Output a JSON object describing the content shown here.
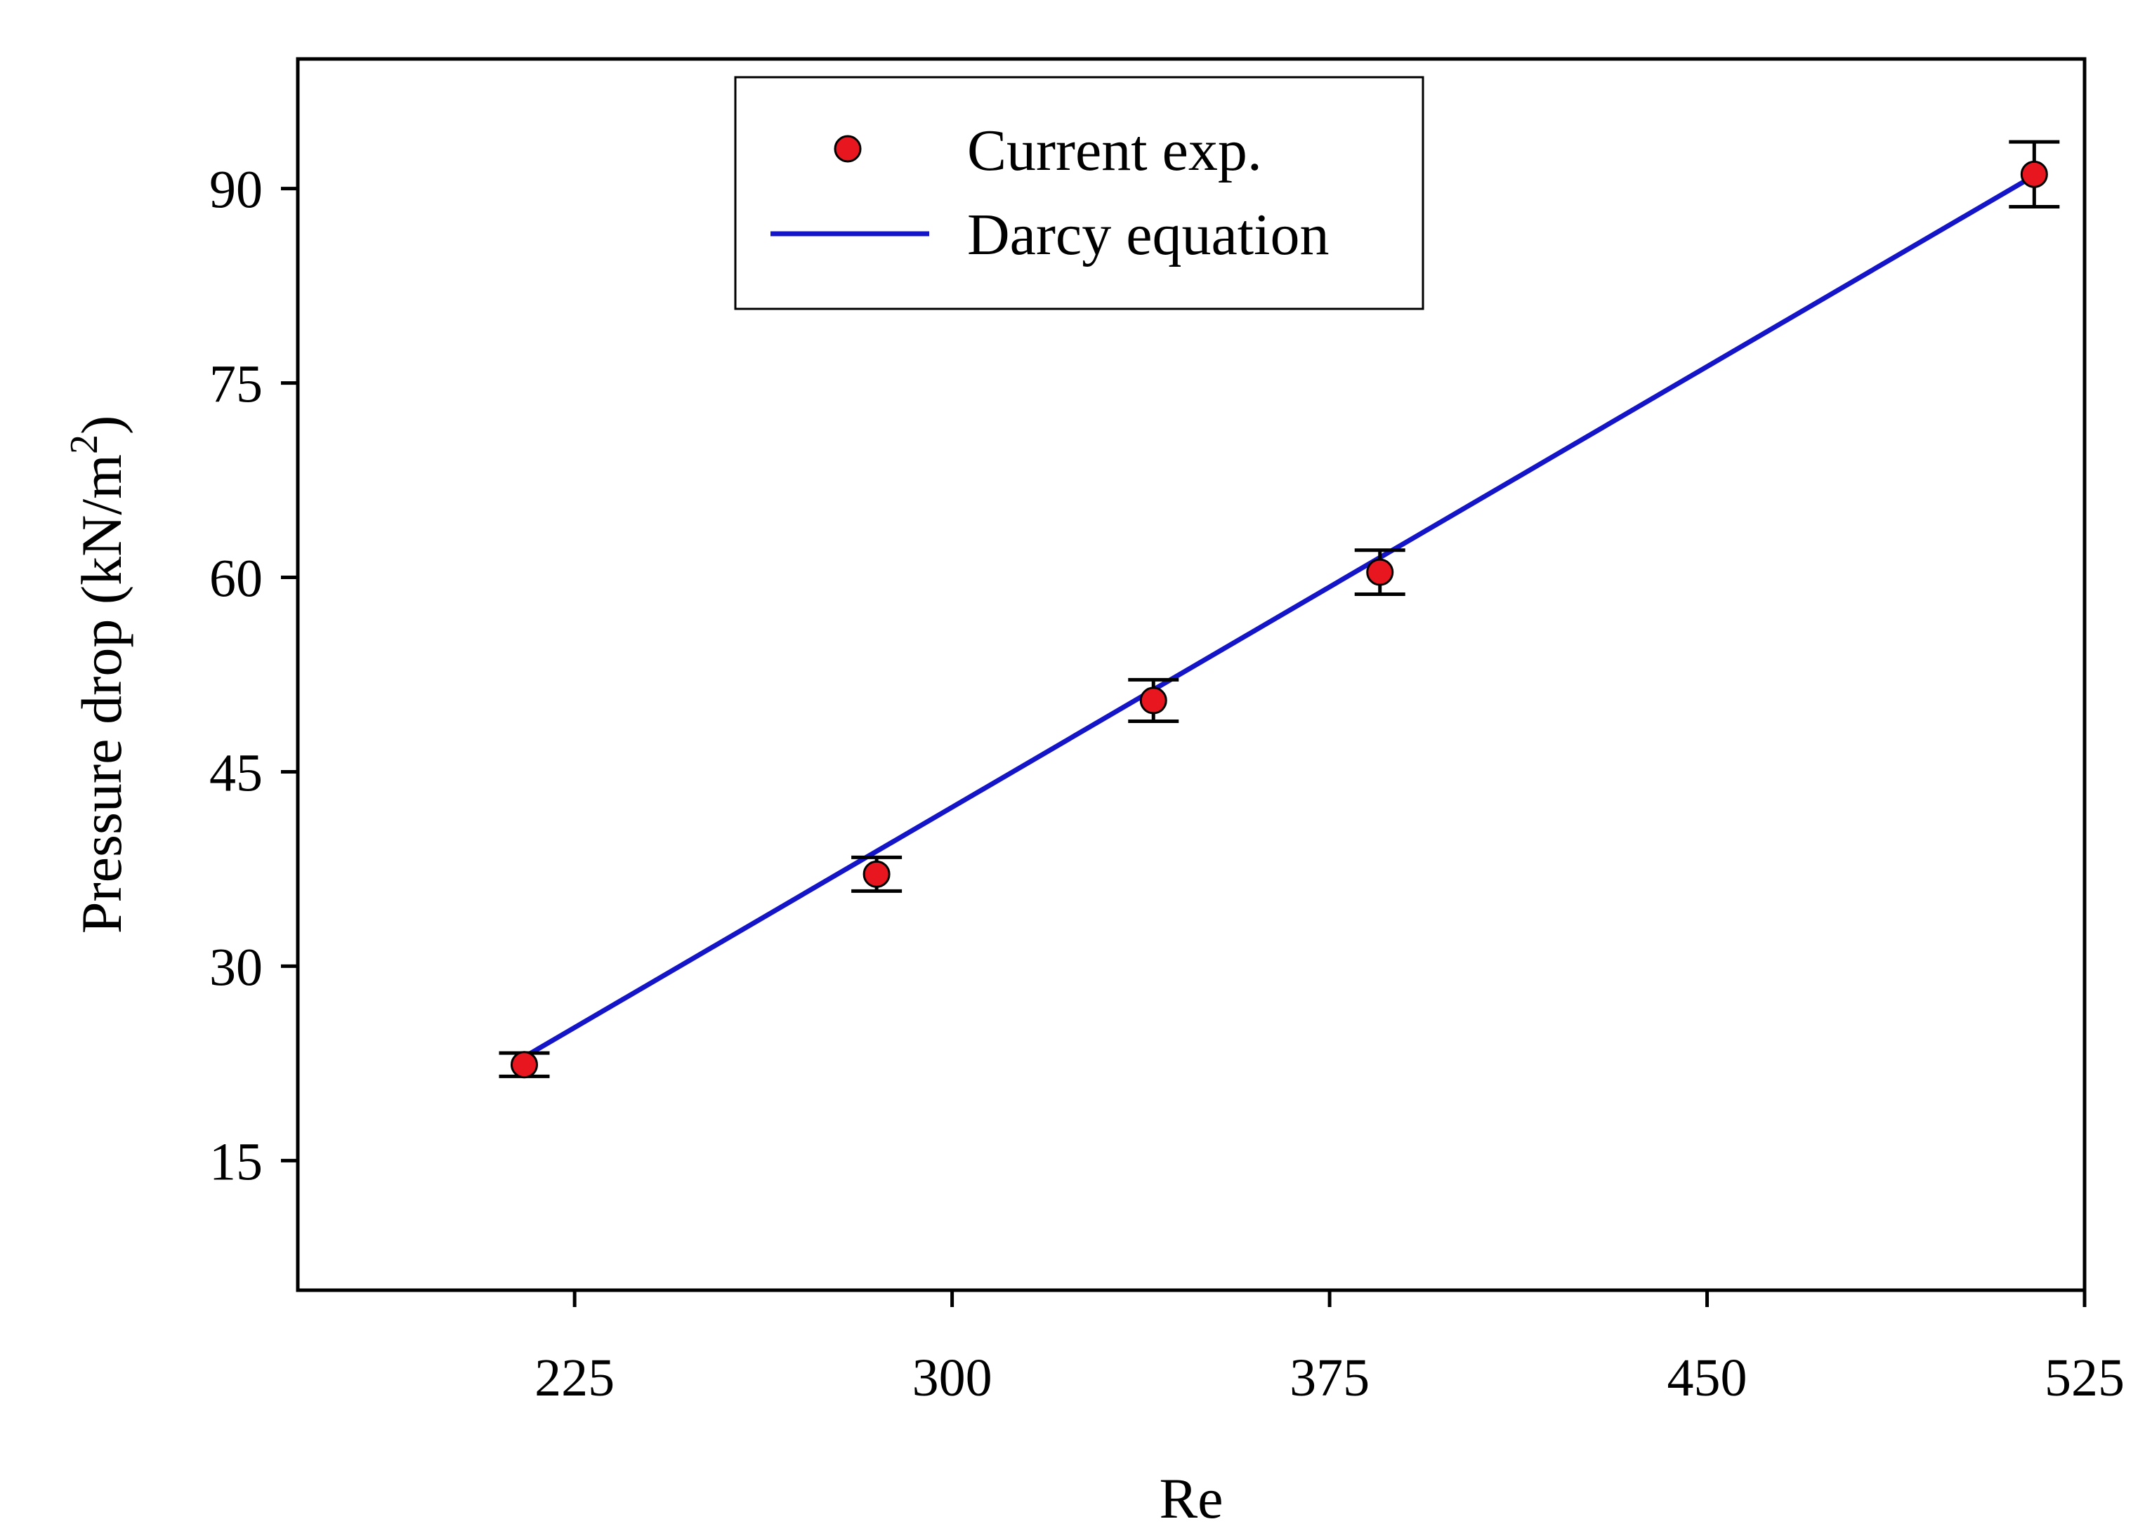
{
  "colors": {
    "marker_fill": "#e8161f",
    "marker_stroke": "#000000",
    "line": "#1414c8",
    "axis": "#000000",
    "background": "#ffffff"
  },
  "chart_data": {
    "type": "scatter",
    "xlabel": "Re",
    "ylabel": "Pressure drop (kN/m",
    "ylabel_superscript": "2",
    "ylabel_close": ")",
    "xlim": [
      170,
      525
    ],
    "ylim": [
      5,
      100
    ],
    "xticks": [
      225,
      300,
      375,
      450,
      525
    ],
    "yticks": [
      15,
      30,
      45,
      60,
      75,
      90
    ],
    "grid": false,
    "legend_position": "top-center",
    "series": [
      {
        "name": "Current exp.",
        "kind": "points",
        "marker": "circle",
        "x": [
          215,
          285,
          340,
          385,
          515
        ],
        "y": [
          22.4,
          37.1,
          50.5,
          60.4,
          91.1
        ],
        "error": [
          0.9,
          1.3,
          1.6,
          1.7,
          2.5
        ]
      },
      {
        "name": "Darcy equation",
        "kind": "line",
        "x": [
          215,
          515
        ],
        "y": [
          23.0,
          91.0
        ]
      }
    ]
  }
}
